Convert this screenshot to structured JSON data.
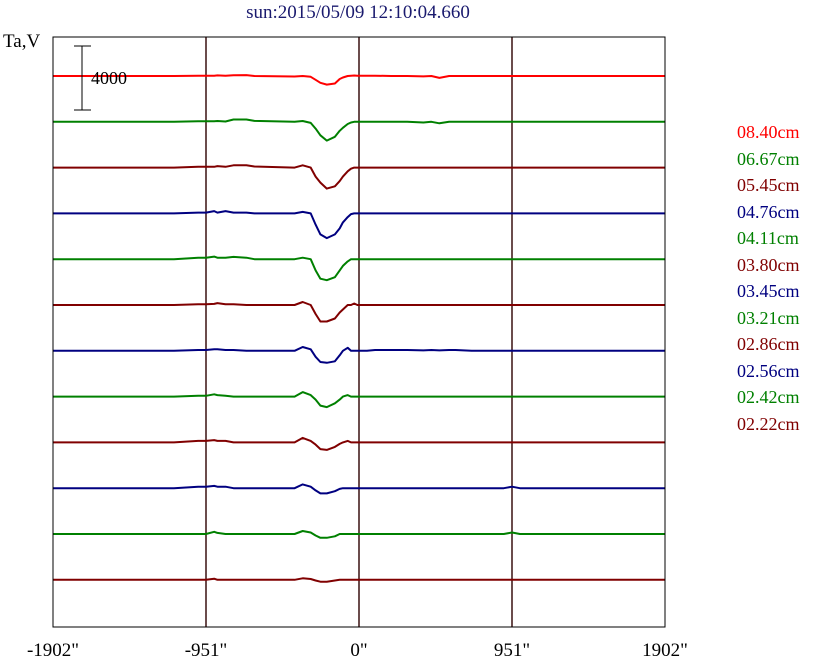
{
  "chart_data": {
    "type": "line",
    "title": "sun:2015/05/09 12:10:04.660",
    "ylabel": "Ta,V",
    "scale_bar_label": "4000",
    "x_tick_labels": [
      "-1902\"",
      "-951\"",
      "0\"",
      "951\"",
      "1902\""
    ],
    "x_ticks": [
      -1902,
      -951,
      0,
      951,
      1902
    ],
    "xlim": [
      -1902,
      1902
    ],
    "grid_vertical_at": [
      -951,
      0,
      951
    ],
    "legend_position": "right",
    "series": [
      {
        "name": "08.40cm",
        "color": "#ff0000"
      },
      {
        "name": "06.67cm",
        "color": "#008000"
      },
      {
        "name": "05.45cm",
        "color": "#800000"
      },
      {
        "name": "04.76cm",
        "color": "#000080"
      },
      {
        "name": "04.11cm",
        "color": "#008000"
      },
      {
        "name": "03.80cm",
        "color": "#800000"
      },
      {
        "name": "03.45cm",
        "color": "#000080"
      },
      {
        "name": "03.21cm",
        "color": "#008000"
      },
      {
        "name": "02.86cm",
        "color": "#800000"
      },
      {
        "name": "02.56cm",
        "color": "#000080"
      },
      {
        "name": "02.42cm",
        "color": "#008000"
      },
      {
        "name": "02.22cm",
        "color": "#800000"
      }
    ],
    "profile_x": [
      -1902,
      -1150,
      -1000,
      -951,
      -900,
      -880,
      -830,
      -780,
      -700,
      -650,
      -400,
      -350,
      -300,
      -270,
      -240,
      -200,
      -150,
      -120,
      -100,
      -70,
      -50,
      -30,
      -10,
      0,
      50,
      100,
      200,
      300,
      400,
      450,
      500,
      560,
      600,
      700,
      900,
      951,
      1000,
      1902
    ],
    "profiles": [
      [
        0,
        0,
        40,
        40,
        40,
        80,
        40,
        100,
        120,
        0,
        -60,
        0,
        -100,
        -500,
        -900,
        -1150,
        -1000,
        -400,
        -200,
        0,
        40,
        60,
        40,
        40,
        40,
        40,
        0,
        0,
        -50,
        0,
        -250,
        0,
        0,
        0,
        0,
        0,
        0,
        0
      ],
      [
        0,
        0,
        60,
        60,
        60,
        100,
        40,
        300,
        300,
        120,
        0,
        100,
        -150,
        -900,
        -1800,
        -2500,
        -2000,
        -1200,
        -800,
        -300,
        -100,
        0,
        0,
        0,
        0,
        0,
        0,
        0,
        -100,
        0,
        -200,
        0,
        0,
        0,
        0,
        0,
        0,
        0
      ],
      [
        0,
        0,
        100,
        100,
        100,
        200,
        100,
        300,
        300,
        150,
        0,
        300,
        0,
        -1200,
        -2000,
        -2800,
        -2500,
        -1800,
        -1200,
        -500,
        -150,
        0,
        0,
        0,
        0,
        0,
        0,
        0,
        0,
        0,
        0,
        0,
        0,
        0,
        0,
        0,
        0,
        0
      ],
      [
        0,
        0,
        100,
        100,
        300,
        100,
        300,
        100,
        100,
        0,
        0,
        200,
        0,
        -1500,
        -2800,
        -3300,
        -2800,
        -2000,
        -1200,
        -500,
        -100,
        0,
        0,
        0,
        0,
        0,
        0,
        0,
        0,
        0,
        0,
        0,
        0,
        0,
        0,
        0,
        0,
        0
      ],
      [
        0,
        0,
        200,
        200,
        350,
        200,
        200,
        300,
        200,
        0,
        0,
        200,
        0,
        -1500,
        -2600,
        -2800,
        -2400,
        -1500,
        -900,
        -300,
        0,
        0,
        0,
        0,
        0,
        0,
        0,
        0,
        0,
        0,
        0,
        0,
        0,
        0,
        0,
        0,
        0,
        0
      ],
      [
        0,
        0,
        100,
        100,
        150,
        250,
        100,
        100,
        0,
        0,
        0,
        400,
        0,
        -1200,
        -2200,
        -2200,
        -1800,
        -1000,
        -600,
        0,
        0,
        200,
        0,
        0,
        0,
        0,
        0,
        0,
        0,
        0,
        0,
        0,
        0,
        0,
        0,
        0,
        0,
        0
      ],
      [
        0,
        0,
        100,
        100,
        200,
        200,
        100,
        100,
        0,
        0,
        0,
        500,
        200,
        -800,
        -1500,
        -1600,
        -1400,
        -600,
        0,
        400,
        0,
        0,
        0,
        0,
        0,
        100,
        100,
        100,
        50,
        100,
        50,
        100,
        100,
        0,
        0,
        0,
        0,
        0
      ],
      [
        0,
        0,
        100,
        100,
        300,
        200,
        100,
        0,
        0,
        0,
        0,
        600,
        200,
        -400,
        -1200,
        -1400,
        -900,
        -400,
        0,
        200,
        0,
        0,
        0,
        0,
        0,
        0,
        0,
        0,
        0,
        0,
        0,
        0,
        0,
        0,
        0,
        0,
        0,
        0
      ],
      [
        0,
        0,
        200,
        200,
        300,
        200,
        200,
        0,
        0,
        0,
        0,
        600,
        200,
        -300,
        -900,
        -1000,
        -600,
        -200,
        0,
        200,
        0,
        0,
        0,
        0,
        0,
        0,
        0,
        0,
        0,
        0,
        0,
        0,
        0,
        0,
        0,
        0,
        0,
        0
      ],
      [
        0,
        0,
        200,
        200,
        300,
        200,
        200,
        0,
        0,
        0,
        0,
        500,
        200,
        -300,
        -700,
        -700,
        -400,
        -100,
        0,
        0,
        0,
        0,
        0,
        0,
        0,
        0,
        0,
        0,
        0,
        0,
        0,
        0,
        0,
        0,
        0,
        200,
        0,
        0
      ],
      [
        0,
        0,
        0,
        0,
        300,
        150,
        0,
        0,
        0,
        0,
        0,
        400,
        200,
        -200,
        -500,
        -500,
        -300,
        0,
        0,
        0,
        0,
        0,
        0,
        0,
        0,
        0,
        0,
        0,
        0,
        0,
        0,
        0,
        0,
        0,
        0,
        200,
        0,
        0
      ],
      [
        0,
        0,
        0,
        0,
        150,
        0,
        0,
        0,
        0,
        0,
        0,
        200,
        100,
        -100,
        -250,
        -250,
        -100,
        0,
        0,
        0,
        0,
        0,
        0,
        0,
        0,
        0,
        0,
        0,
        0,
        0,
        0,
        0,
        0,
        0,
        0,
        0,
        0,
        0
      ]
    ]
  }
}
